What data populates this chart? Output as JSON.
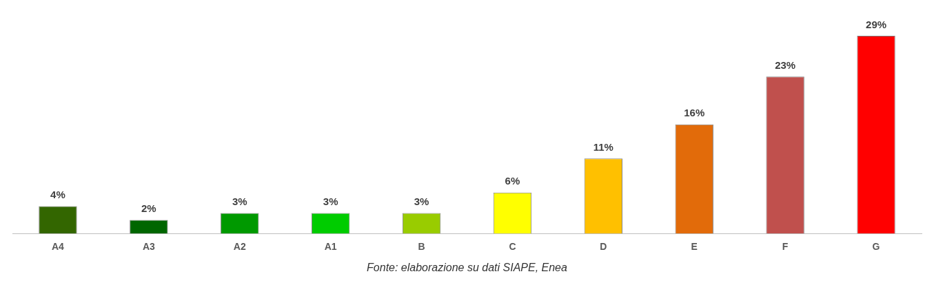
{
  "chart_data": {
    "type": "bar",
    "categories": [
      "A4",
      "A3",
      "A2",
      "A1",
      "B",
      "C",
      "D",
      "E",
      "F",
      "G"
    ],
    "values": [
      4,
      2,
      3,
      3,
      3,
      6,
      11,
      16,
      23,
      29
    ],
    "colors": [
      "#336600",
      "#006600",
      "#009900",
      "#00cc00",
      "#99cc00",
      "#ffff00",
      "#ffc000",
      "#e26b0a",
      "#c0504d",
      "#ff0000"
    ],
    "value_labels": [
      "4%",
      "2%",
      "3%",
      "3%",
      "3%",
      "6%",
      "11%",
      "16%",
      "23%",
      "29%"
    ],
    "tick_labels": "x",
    "grid": false,
    "legend": false,
    "annotations": [
      "Fonte: elaborazione su dati SIAPE, Enea"
    ]
  }
}
